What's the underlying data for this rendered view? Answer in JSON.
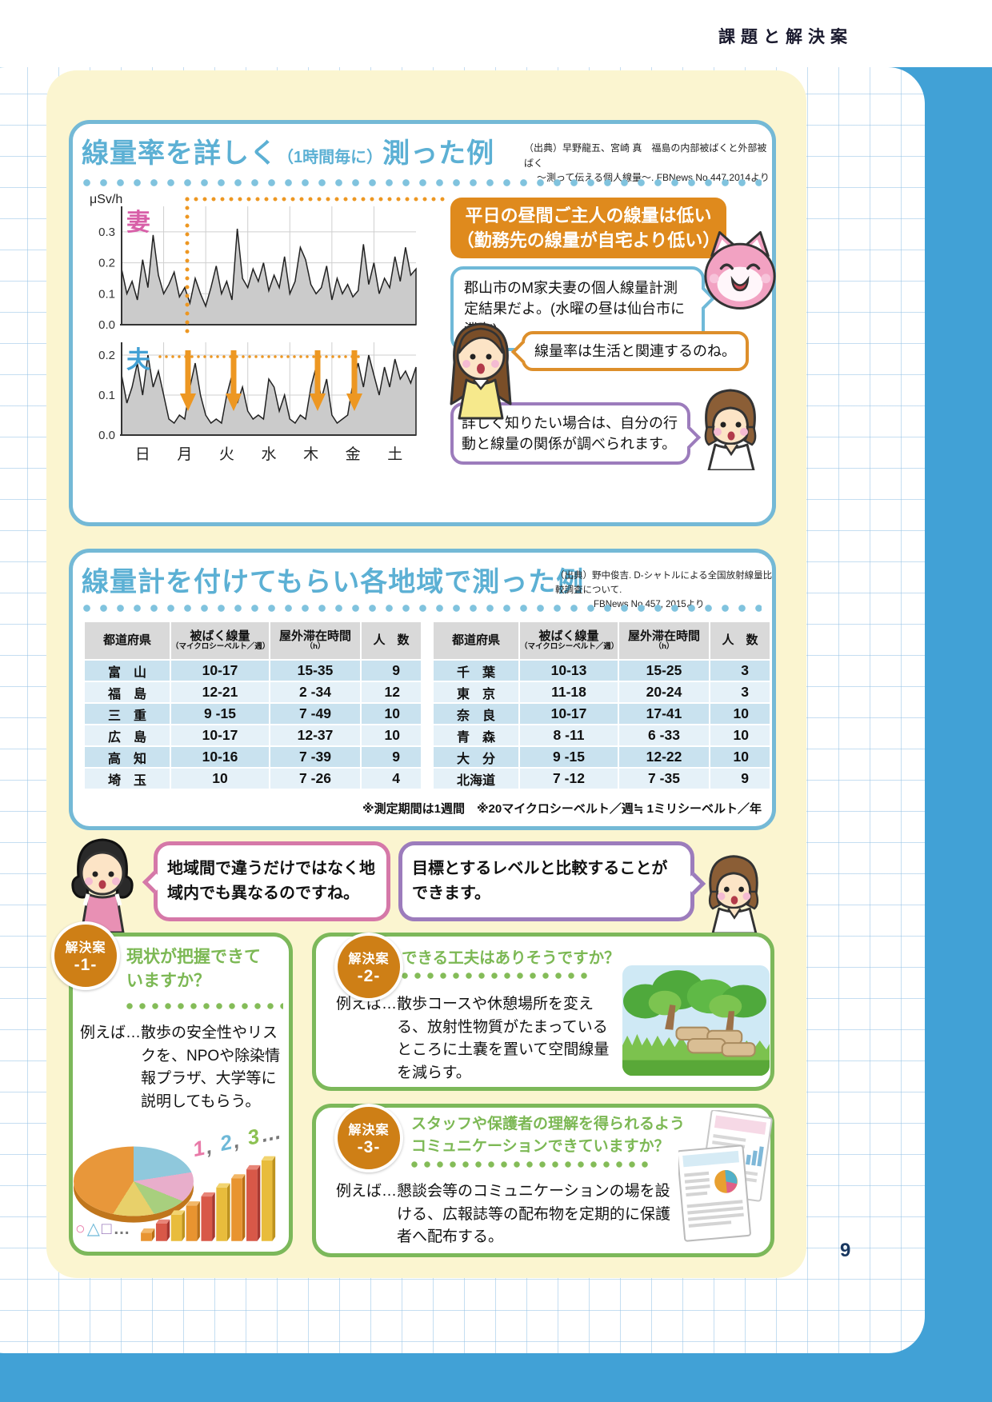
{
  "page": {
    "header": "課題と解決案",
    "page_number": "9"
  },
  "section1": {
    "title_main": "線量率を詳しく",
    "title_paren": "（1時間毎に）",
    "title_tail": "測った例",
    "source_line1": "（出典）早野龍五、宮崎 真　福島の内部被ばくと外部被ばく",
    "source_line2": "～測って伝える個人線量～. FBNews No.447,2014より",
    "unit_label": "μSv/h",
    "callout_line1": "平日の昼間ご主人の線量は低い",
    "callout_line2": "（勤務先の線量が自宅より低い）",
    "bubble_measurement": "郡山市のM家夫妻の個人線量計測定結果だよ。(水曜の昼は仙台市に滞在)",
    "bubble_lifestyle": "線量率は生活と関連するのね。",
    "bubble_detail": "詳しく知りたい場合は、自分の行動と線量の関係が調べられます。"
  },
  "chart_data": {
    "type": "area",
    "unit": "μSv/h",
    "x_axis": {
      "categories": [
        "日",
        "月",
        "火",
        "水",
        "木",
        "金",
        "土"
      ],
      "note": "1時間毎・1週間"
    },
    "series": [
      {
        "name": "妻",
        "label_color": "#D85FA8",
        "ticks": [
          "0.3",
          "0.2",
          "0.1",
          "0.0"
        ],
        "ymax": 0.35,
        "values": [
          0.18,
          0.1,
          0.14,
          0.08,
          0.21,
          0.12,
          0.29,
          0.16,
          0.1,
          0.13,
          0.17,
          0.09,
          0.12,
          0.07,
          0.15,
          0.1,
          0.06,
          0.12,
          0.19,
          0.1,
          0.14,
          0.08,
          0.31,
          0.15,
          0.12,
          0.18,
          0.14,
          0.2,
          0.11,
          0.16,
          0.12,
          0.22,
          0.1,
          0.14,
          0.25,
          0.21,
          0.13,
          0.1,
          0.12,
          0.19,
          0.08,
          0.15,
          0.1,
          0.13,
          0.09,
          0.11,
          0.26,
          0.13,
          0.2,
          0.1,
          0.15,
          0.12,
          0.22,
          0.14,
          0.25,
          0.16,
          0.18
        ]
      },
      {
        "name": "夫",
        "label_color": "#42A0D4",
        "ticks": [
          "0.2",
          "0.1",
          "0.0"
        ],
        "ymax": 0.25,
        "values": [
          0.15,
          0.08,
          0.12,
          0.18,
          0.1,
          0.2,
          0.12,
          0.16,
          0.1,
          0.04,
          0.03,
          0.05,
          0.04,
          0.12,
          0.18,
          0.1,
          0.05,
          0.03,
          0.04,
          0.03,
          0.1,
          0.15,
          0.08,
          0.12,
          0.06,
          0.04,
          0.05,
          0.04,
          0.14,
          0.12,
          0.06,
          0.1,
          0.04,
          0.03,
          0.05,
          0.04,
          0.12,
          0.17,
          0.09,
          0.14,
          0.05,
          0.03,
          0.04,
          0.05,
          0.13,
          0.18,
          0.12,
          0.2,
          0.15,
          0.1,
          0.17,
          0.12,
          0.19,
          0.14,
          0.16,
          0.13,
          0.17
        ]
      }
    ]
  },
  "section2": {
    "title": "線量計を付けてもらい各地域で測った例",
    "source_line1": "（出典）野中俊吉. D-シャトルによる全国放射線量比較調査について.",
    "source_line2": "FBNews No.457, 2015より",
    "table_headers": {
      "pref": "都道府県",
      "dose": "被ばく線量",
      "dose_sub": "（マイクロシーベルト／週）",
      "outdoor": "屋外滞在時間",
      "outdoor_sub": "（h）",
      "count": "人　数"
    },
    "table_left": [
      {
        "pref": "富　山",
        "dose": "10-17",
        "outdoor": "15-35",
        "count": "9"
      },
      {
        "pref": "福　島",
        "dose": "12-21",
        "outdoor": "2 -34",
        "count": "12"
      },
      {
        "pref": "三　重",
        "dose": "9 -15",
        "outdoor": "7 -49",
        "count": "10"
      },
      {
        "pref": "広　島",
        "dose": "10-17",
        "outdoor": "12-37",
        "count": "10"
      },
      {
        "pref": "高　知",
        "dose": "10-16",
        "outdoor": "7 -39",
        "count": "9"
      },
      {
        "pref": "埼　玉",
        "dose": "10",
        "outdoor": "7 -26",
        "count": "4"
      }
    ],
    "table_right": [
      {
        "pref": "千　葉",
        "dose": "10-13",
        "outdoor": "15-25",
        "count": "3"
      },
      {
        "pref": "東　京",
        "dose": "11-18",
        "outdoor": "20-24",
        "count": "3"
      },
      {
        "pref": "奈　良",
        "dose": "10-17",
        "outdoor": "17-41",
        "count": "10"
      },
      {
        "pref": "青　森",
        "dose": "8 -11",
        "outdoor": "6 -33",
        "count": "10"
      },
      {
        "pref": "大　分",
        "dose": "9 -15",
        "outdoor": "12-22",
        "count": "10"
      },
      {
        "pref": "北海道",
        "dose": "7 -12",
        "outdoor": "7 -35",
        "count": "9"
      }
    ],
    "footnote": "※測定期間は1週間　※20マイクロシーベルト／週≒ 1ミリシーベルト／年",
    "bubble_region": "地域間で違うだけではなく地域内でも異なるのですね。",
    "bubble_target": "目標とするレベルと比較することができます。"
  },
  "solutions": [
    {
      "badge_label": "解決案",
      "badge_number": "-1-",
      "title": "現状が把握できていますか？",
      "body": "例えば…散歩の安全性やリスクを、NPOや除染情報プラザ、大学等に説明してもらう。",
      "deco_numbers": "1, 2, 3…",
      "deco_symbols": "○△□…"
    },
    {
      "badge_label": "解決案",
      "badge_number": "-2-",
      "title": "できる工夫はありそうですか？",
      "body": "例えば…散歩コースや休憩場所を変える、放射性物質がたまっているところに土嚢を置いて空間線量を減らす。"
    },
    {
      "badge_label": "解決案",
      "badge_number": "-3-",
      "title": "スタッフや保護者の理解を得られるよう\nコミュニケーションできていますか？",
      "body": "例えば…懇談会等のコミュニケーションの場を設ける、広報誌等の配布物を定期的に保護者へ配布する。"
    }
  ],
  "colors": {
    "frame_blue": "#41A1D6",
    "panel_yellow": "#FBF5D0",
    "section_title_blue": "#5CB0D4",
    "box_border_blue": "#74B9D6",
    "callout_orange": "#DF8A1D",
    "bubble_pink": "#D578A8",
    "bubble_purple": "#9C7CBC",
    "solution_green": "#7CB85A",
    "badge_orange": "#CE7F16",
    "wife_pink": "#D85FA8",
    "husband_blue": "#42A0D4"
  }
}
